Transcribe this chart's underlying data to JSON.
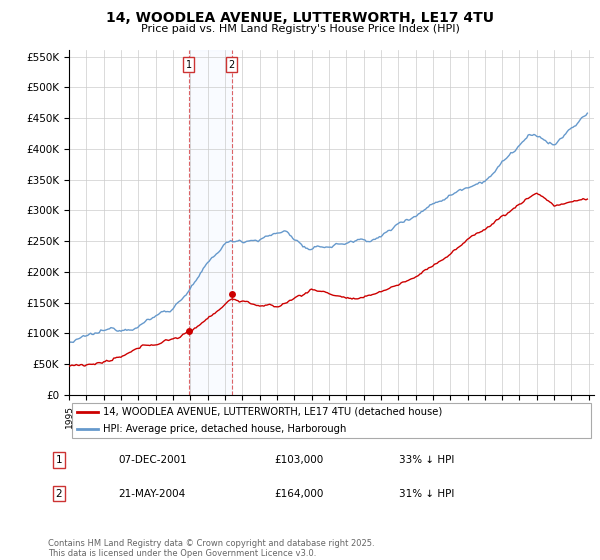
{
  "title": "14, WOODLEA AVENUE, LUTTERWORTH, LE17 4TU",
  "subtitle": "Price paid vs. HM Land Registry's House Price Index (HPI)",
  "sale1_date": 2001.92,
  "sale1_price": 103000,
  "sale2_date": 2004.38,
  "sale2_price": 164000,
  "sale1_text": "07-DEC-2001",
  "sale1_amount": "£103,000",
  "sale1_hpi": "33% ↓ HPI",
  "sale2_text": "21-MAY-2004",
  "sale2_amount": "£164,000",
  "sale2_hpi": "31% ↓ HPI",
  "red_color": "#cc0000",
  "blue_color": "#6699cc",
  "legend_line1": "14, WOODLEA AVENUE, LUTTERWORTH, LE17 4TU (detached house)",
  "legend_line2": "HPI: Average price, detached house, Harborough",
  "footnote": "Contains HM Land Registry data © Crown copyright and database right 2025.\nThis data is licensed under the Open Government Licence v3.0.",
  "bg_color": "#ffffff",
  "grid_color": "#cccccc"
}
